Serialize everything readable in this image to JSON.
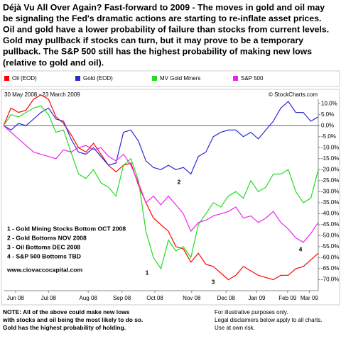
{
  "header": {
    "lines": [
      "Déjà Vu All Over Again?   Fast-forward to 2009 - The moves in gold and oil may",
      "be signaling the Fed's dramatic actions are starting to re-inflate asset prices.",
      "Oil and gold have a lower probability of failure than stocks from current levels.",
      "Gold may pullback if stocks can turn, but it may prove to be a temporary",
      "pullback.  The S&P 500 still has the highest probability of making new lows",
      "(relative to gold and oil)."
    ]
  },
  "chart_data": {
    "type": "line",
    "subtitle": "30 May 2008 - 23 March 2009",
    "credit": "© StockCharts.com",
    "x": [
      0,
      1,
      2,
      3,
      4,
      5,
      6,
      7,
      8,
      9,
      10,
      11,
      12,
      13,
      14,
      15,
      16,
      17,
      18,
      19,
      20,
      21,
      22,
      23,
      24,
      25,
      26,
      27,
      28,
      29,
      30,
      31,
      32,
      33,
      34,
      35,
      36,
      37,
      38,
      39,
      40,
      41,
      42
    ],
    "xlim": [
      0,
      42
    ],
    "xticks": [
      {
        "value": 1.6,
        "label": "Jun 08"
      },
      {
        "value": 6,
        "label": "Jul 08"
      },
      {
        "value": 11.3,
        "label": "Aug 08"
      },
      {
        "value": 15.8,
        "label": "Sep 08"
      },
      {
        "value": 20.2,
        "label": "Oct 08"
      },
      {
        "value": 25.1,
        "label": "Nov 08"
      },
      {
        "value": 29.7,
        "label": "Dec 08"
      },
      {
        "value": 33.8,
        "label": "Jan 09"
      },
      {
        "value": 37.9,
        "label": "Feb 09"
      },
      {
        "value": 40.8,
        "label": "Mar 09"
      }
    ],
    "ylim": [
      -75,
      12
    ],
    "yticks": [
      {
        "value": 10,
        "label": "10.0%"
      },
      {
        "value": 5,
        "label": "5.0%"
      },
      {
        "value": 0,
        "label": "0.0%"
      },
      {
        "value": -5,
        "label": "-5.0%"
      },
      {
        "value": -10,
        "label": "-10.0%"
      },
      {
        "value": -15,
        "label": "-15.0%"
      },
      {
        "value": -20,
        "label": "-20.0%"
      },
      {
        "value": -25,
        "label": "-25.0%"
      },
      {
        "value": -30,
        "label": "-30.0%"
      },
      {
        "value": -35,
        "label": "-35.0%"
      },
      {
        "value": -40,
        "label": "-40.0%"
      },
      {
        "value": -45,
        "label": "-45.0%"
      },
      {
        "value": -50,
        "label": "-50.0%"
      },
      {
        "value": -55,
        "label": "-55.0%"
      },
      {
        "value": -60,
        "label": "-60.0%"
      },
      {
        "value": -65,
        "label": "-65.0%"
      },
      {
        "value": -70,
        "label": "-70.0%"
      }
    ],
    "series": [
      {
        "name": "Oil (EOD)",
        "color": "#ff0000",
        "values": [
          0,
          8,
          6,
          7,
          12,
          14,
          12,
          4,
          1,
          -4,
          -10,
          -12,
          -8,
          -13,
          -18,
          -21,
          -18,
          -17,
          -27,
          -35,
          -42,
          -45,
          -48,
          -55,
          -56,
          -62,
          -58,
          -63,
          -64,
          -67,
          -70,
          -68,
          -64,
          -66,
          -68,
          -69,
          -70,
          -68,
          -68,
          -65,
          -64,
          -61,
          -58
        ]
      },
      {
        "name": "Gold (EOD)",
        "color": "#2a2ad0",
        "values": [
          0,
          -2,
          1,
          0,
          3,
          6,
          8,
          3,
          2,
          -6,
          -12,
          -13,
          -10,
          -14,
          -18,
          -17,
          -3,
          -2,
          -7,
          -16,
          -19,
          -20,
          -18,
          -20,
          -19,
          -22,
          -14,
          -12,
          -5,
          -3,
          -2,
          -2,
          -5,
          -3,
          -6,
          -2,
          2,
          8,
          11,
          6,
          6,
          2,
          4
        ]
      },
      {
        "name": "MV Gold Miners",
        "color": "#22dd22",
        "values": [
          0,
          5,
          4,
          6,
          8,
          9,
          5,
          -3,
          -2,
          -12,
          -22,
          -24,
          -20,
          -26,
          -28,
          -32,
          -18,
          -15,
          -25,
          -48,
          -60,
          -65,
          -52,
          -57,
          -55,
          -60,
          -45,
          -40,
          -35,
          -37,
          -32,
          -30,
          -33,
          -25,
          -30,
          -28,
          -22,
          -22,
          -20,
          -30,
          -35,
          -33,
          -20
        ]
      },
      {
        "name": "S&P 500",
        "color": "#ee22ee",
        "values": [
          0,
          -3,
          -6,
          -9,
          -12,
          -13,
          -14,
          -15,
          -11,
          -12,
          -10,
          -9,
          -11,
          -10,
          -14,
          -16,
          -13,
          -18,
          -26,
          -35,
          -32,
          -36,
          -32,
          -36,
          -40,
          -48,
          -44,
          -43,
          -41,
          -40,
          -39,
          -37,
          -42,
          -41,
          -44,
          -42,
          -39,
          -44,
          -47,
          -51,
          -53,
          -49,
          -44
        ]
      }
    ],
    "point_labels": [
      "1",
      "2",
      "3",
      "4"
    ],
    "annotations": [
      "1 - Gold Mining Stocks Bottom OCT 2008",
      "2 - Gold Bottoms NOV 2008",
      "3 - Oil Bottoms DEC 2008",
      "4 - S&P 500 Bottoms TBD"
    ],
    "website": "www.ciovaccocapital.com"
  },
  "notes": {
    "left": [
      "NOTE:  All of the above could make new lows",
      "with stocks and oil being the most likely to do so.",
      "Gold has the highest probability of holding."
    ],
    "right": [
      "For illustrative purposes only.",
      "Legal disclaimers below apply to all charts.",
      "Use at own risk."
    ]
  }
}
